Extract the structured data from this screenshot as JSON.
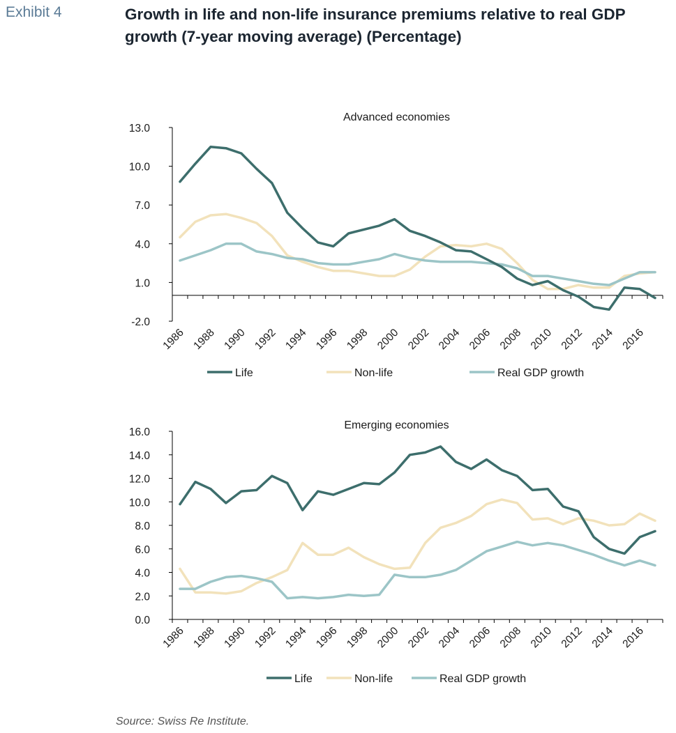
{
  "header": {
    "exhibit_label": "Exhibit 4",
    "title": "Growth in life and non-life insurance premiums relative to real GDP growth (7-year moving average) (Percentage)"
  },
  "footer": {
    "source": "Source: Swiss Re Institute."
  },
  "colors": {
    "life": "#3d6e6c",
    "nonlife": "#f2e2bb",
    "gdp": "#9cc5c7",
    "axis": "#000000"
  },
  "chart_data": [
    {
      "type": "line",
      "title": "Advanced economies",
      "x": [
        1986,
        1987,
        1988,
        1989,
        1990,
        1991,
        1992,
        1993,
        1994,
        1995,
        1996,
        1997,
        1998,
        1999,
        2000,
        2001,
        2002,
        2003,
        2004,
        2005,
        2006,
        2007,
        2008,
        2009,
        2010,
        2011,
        2012,
        2013,
        2014,
        2015,
        2016,
        2017
      ],
      "x_tick_labels": [
        "1986",
        "1988",
        "1990",
        "1992",
        "1994",
        "1996",
        "1998",
        "2000",
        "2002",
        "2004",
        "2006",
        "2008",
        "2010",
        "2012",
        "2014",
        "2016"
      ],
      "ylim": [
        -2.0,
        13.0
      ],
      "y_ticks": [
        "13.0",
        "10.0",
        "7.0",
        "4.0",
        "1.0",
        "-2.0"
      ],
      "series": [
        {
          "name": "Life",
          "values": [
            8.8,
            10.2,
            11.5,
            11.4,
            11.0,
            9.8,
            8.7,
            6.4,
            5.2,
            4.1,
            3.8,
            4.8,
            5.1,
            5.4,
            5.9,
            5.0,
            4.6,
            4.1,
            3.5,
            3.4,
            2.8,
            2.2,
            1.3,
            0.8,
            1.1,
            0.4,
            -0.1,
            -0.9,
            -1.1,
            0.6,
            0.5,
            -0.2
          ]
        },
        {
          "name": "Non-life",
          "values": [
            4.5,
            5.7,
            6.2,
            6.3,
            6.0,
            5.6,
            4.6,
            3.1,
            2.6,
            2.2,
            1.9,
            1.9,
            1.7,
            1.5,
            1.5,
            2.0,
            3.0,
            3.8,
            3.9,
            3.8,
            4.0,
            3.6,
            2.5,
            1.2,
            0.5,
            0.5,
            0.8,
            0.6,
            0.6,
            1.5,
            1.7,
            1.8
          ]
        },
        {
          "name": "Real GDP growth",
          "values": [
            2.7,
            3.1,
            3.5,
            4.0,
            4.0,
            3.4,
            3.2,
            2.9,
            2.8,
            2.5,
            2.4,
            2.4,
            2.6,
            2.8,
            3.2,
            2.9,
            2.7,
            2.6,
            2.6,
            2.6,
            2.5,
            2.4,
            2.1,
            1.5,
            1.5,
            1.3,
            1.1,
            0.9,
            0.8,
            1.3,
            1.8,
            1.8
          ]
        }
      ],
      "legend": [
        "Life",
        "Non-life",
        "Real GDP growth"
      ],
      "legend_position": "bottom"
    },
    {
      "type": "line",
      "title": "Emerging economies",
      "x": [
        1986,
        1987,
        1988,
        1989,
        1990,
        1991,
        1992,
        1993,
        1994,
        1995,
        1996,
        1997,
        1998,
        1999,
        2000,
        2001,
        2002,
        2003,
        2004,
        2005,
        2006,
        2007,
        2008,
        2009,
        2010,
        2011,
        2012,
        2013,
        2014,
        2015,
        2016,
        2017
      ],
      "x_tick_labels": [
        "1986",
        "1988",
        "1990",
        "1992",
        "1994",
        "1996",
        "1998",
        "2000",
        "2002",
        "2004",
        "2006",
        "2008",
        "2010",
        "2012",
        "2014",
        "2016"
      ],
      "ylim": [
        0.0,
        16.0
      ],
      "y_ticks": [
        "16.0",
        "14.0",
        "12.0",
        "10.0",
        "8.0",
        "6.0",
        "4.0",
        "2.0",
        "0.0"
      ],
      "series": [
        {
          "name": "Life",
          "values": [
            9.8,
            11.7,
            11.1,
            9.9,
            10.9,
            11.0,
            12.2,
            11.6,
            9.3,
            10.9,
            10.6,
            11.1,
            11.6,
            11.5,
            12.5,
            14.0,
            14.2,
            14.7,
            13.4,
            12.8,
            13.6,
            12.7,
            12.2,
            11.0,
            11.1,
            9.6,
            9.2,
            7.0,
            6.0,
            5.6,
            7.0,
            7.5
          ]
        },
        {
          "name": "Non-life",
          "values": [
            4.3,
            2.3,
            2.3,
            2.2,
            2.4,
            3.1,
            3.6,
            4.2,
            6.5,
            5.5,
            5.5,
            6.1,
            5.3,
            4.7,
            4.3,
            4.4,
            6.5,
            7.8,
            8.2,
            8.8,
            9.8,
            10.2,
            9.9,
            8.5,
            8.6,
            8.1,
            8.6,
            8.4,
            8.0,
            8.1,
            9.0,
            8.4
          ]
        },
        {
          "name": "Real GDP growth",
          "values": [
            2.6,
            2.6,
            3.2,
            3.6,
            3.7,
            3.5,
            3.2,
            1.8,
            1.9,
            1.8,
            1.9,
            2.1,
            2.0,
            2.1,
            3.8,
            3.6,
            3.6,
            3.8,
            4.2,
            5.0,
            5.8,
            6.2,
            6.6,
            6.3,
            6.5,
            6.3,
            5.9,
            5.5,
            5.0,
            4.6,
            5.0,
            4.6
          ]
        }
      ],
      "legend": [
        "Life",
        "Non-life",
        "Real GDP growth"
      ],
      "legend_position": "bottom"
    }
  ]
}
